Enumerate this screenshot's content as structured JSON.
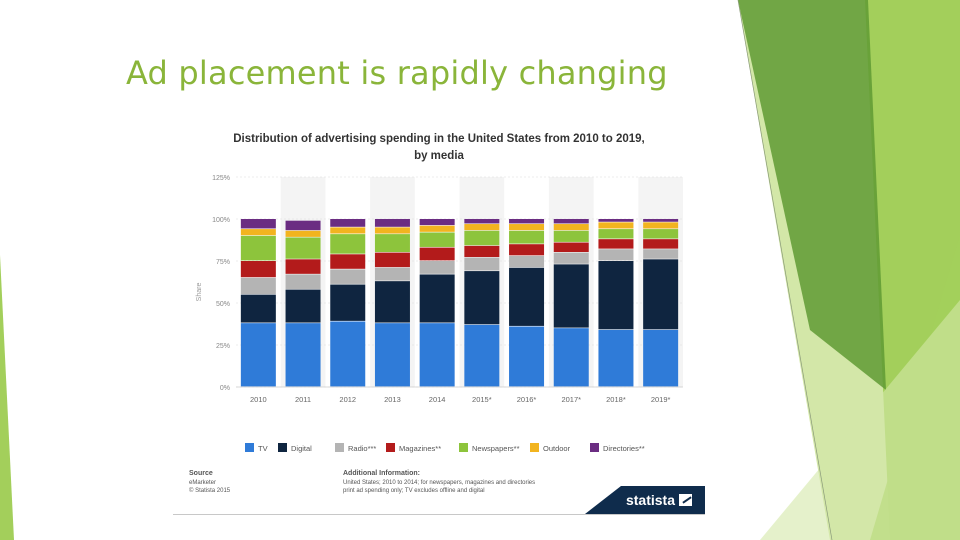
{
  "slide": {
    "title": "Ad placement is rapidly changing"
  },
  "colors": {
    "title": "#8ab53a",
    "deco_light": "#d3e7a8",
    "deco_mid": "#a3cf5b",
    "deco_dark": "#5f9a34"
  },
  "chart_data": {
    "type": "bar",
    "stacked": true,
    "title_line1": "Distribution of advertising spending in the United States from 2010 to 2019,",
    "title_line2": "by media",
    "ylabel": "Share",
    "ylim": [
      0,
      125
    ],
    "yticks": [
      "0%",
      "25%",
      "50%",
      "75%",
      "100%",
      "125%"
    ],
    "categories": [
      "2010",
      "2011",
      "2012",
      "2013",
      "2014",
      "2015*",
      "2016*",
      "2017*",
      "2018*",
      "2019*"
    ],
    "series": [
      {
        "name": "TV",
        "color": "#2f7bd8",
        "values": [
          38,
          38,
          39,
          38,
          38,
          37,
          36,
          35,
          34,
          34
        ]
      },
      {
        "name": "Digital",
        "color": "#0f2540",
        "values": [
          17,
          20,
          22,
          25,
          29,
          32,
          35,
          38,
          41,
          42
        ]
      },
      {
        "name": "Radio***",
        "color": "#b4b4b4",
        "values": [
          10,
          9,
          9,
          8,
          8,
          8,
          7,
          7,
          7,
          6
        ]
      },
      {
        "name": "Magazines**",
        "color": "#b31b1b",
        "values": [
          10,
          9,
          9,
          9,
          8,
          7,
          7,
          6,
          6,
          6
        ]
      },
      {
        "name": "Newspapers**",
        "color": "#8dc43c",
        "values": [
          15,
          13,
          12,
          11,
          9,
          9,
          8,
          7,
          6,
          6
        ]
      },
      {
        "name": "Outdoor",
        "color": "#f2b41f",
        "values": [
          4,
          4,
          4,
          4,
          4,
          4,
          4,
          4,
          4,
          4
        ]
      },
      {
        "name": "Directories**",
        "color": "#6b2d82",
        "values": [
          6,
          6,
          5,
          5,
          4,
          3,
          3,
          3,
          2,
          2
        ]
      }
    ],
    "source": {
      "heading": "Source",
      "lines": [
        "eMarketer",
        "© Statista 2015"
      ]
    },
    "additional_info": {
      "heading": "Additional Information:",
      "lines": [
        "United States; 2010 to 2014; for newspapers, magazines and directories",
        "print ad spending only; TV excludes offline and digital"
      ]
    },
    "brand": "statista"
  }
}
